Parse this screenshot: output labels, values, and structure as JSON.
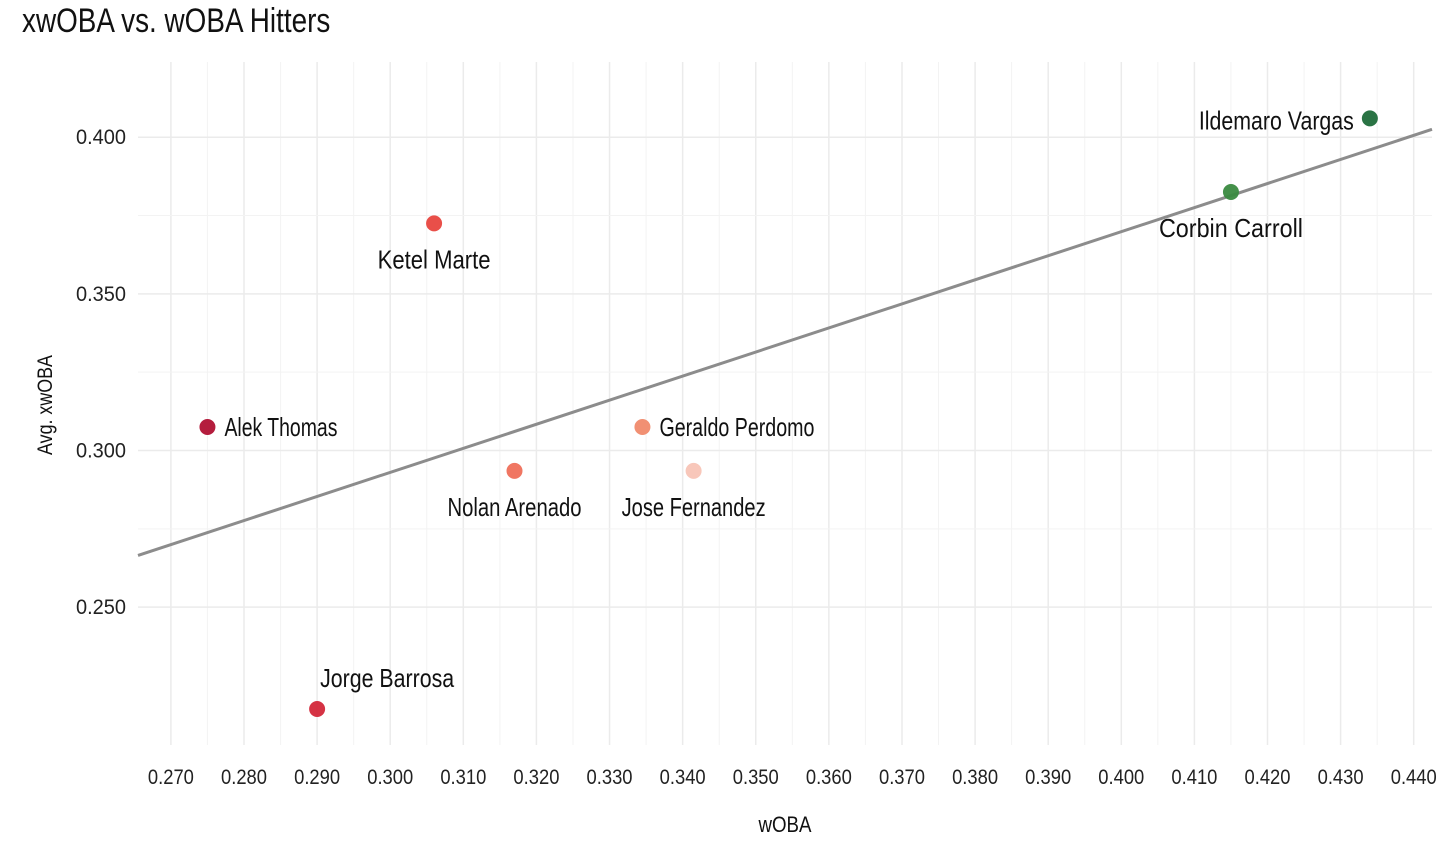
{
  "chart_data": {
    "type": "scatter",
    "title": "xwOBA vs. wOBA Hitters",
    "xlabel": "wOBA",
    "ylabel": "Avg. xwOBA",
    "xlim": [
      0.2655,
      0.4425
    ],
    "ylim": [
      0.206,
      0.424
    ],
    "x_ticks": [
      "0.270",
      "0.280",
      "0.290",
      "0.300",
      "0.310",
      "0.320",
      "0.330",
      "0.340",
      "0.350",
      "0.360",
      "0.370",
      "0.380",
      "0.390",
      "0.400",
      "0.410",
      "0.420",
      "0.430",
      "0.440"
    ],
    "y_ticks": [
      "0.250",
      "0.300",
      "0.350",
      "0.400"
    ],
    "grid": true,
    "trendline": {
      "x": [
        0.2655,
        0.4425
      ],
      "y": [
        0.2665,
        0.4025
      ],
      "color": "#8c8c8c"
    },
    "points": [
      {
        "label": "Ildemaro Vargas",
        "x": 0.434,
        "y": 0.406,
        "color": "#1f6b3a",
        "label_pos": "left"
      },
      {
        "label": "Corbin Carroll",
        "x": 0.415,
        "y": 0.3825,
        "color": "#3a8a40",
        "label_pos": "below"
      },
      {
        "label": "Ketel Marte",
        "x": 0.306,
        "y": 0.3725,
        "color": "#e8463f",
        "label_pos": "below"
      },
      {
        "label": "Alek Thomas",
        "x": 0.275,
        "y": 0.3075,
        "color": "#b01133",
        "label_pos": "right"
      },
      {
        "label": "Geraldo Perdomo",
        "x": 0.3345,
        "y": 0.3075,
        "color": "#f08a6c",
        "label_pos": "right"
      },
      {
        "label": "Nolan Arenado",
        "x": 0.317,
        "y": 0.2935,
        "color": "#ef6f5a",
        "label_pos": "below"
      },
      {
        "label": "Jose Fernandez",
        "x": 0.3415,
        "y": 0.2935,
        "color": "#f8c4b6",
        "label_pos": "below"
      },
      {
        "label": "Jorge Barrosa",
        "x": 0.29,
        "y": 0.2175,
        "color": "#d3283a",
        "label_pos": "above"
      }
    ]
  }
}
